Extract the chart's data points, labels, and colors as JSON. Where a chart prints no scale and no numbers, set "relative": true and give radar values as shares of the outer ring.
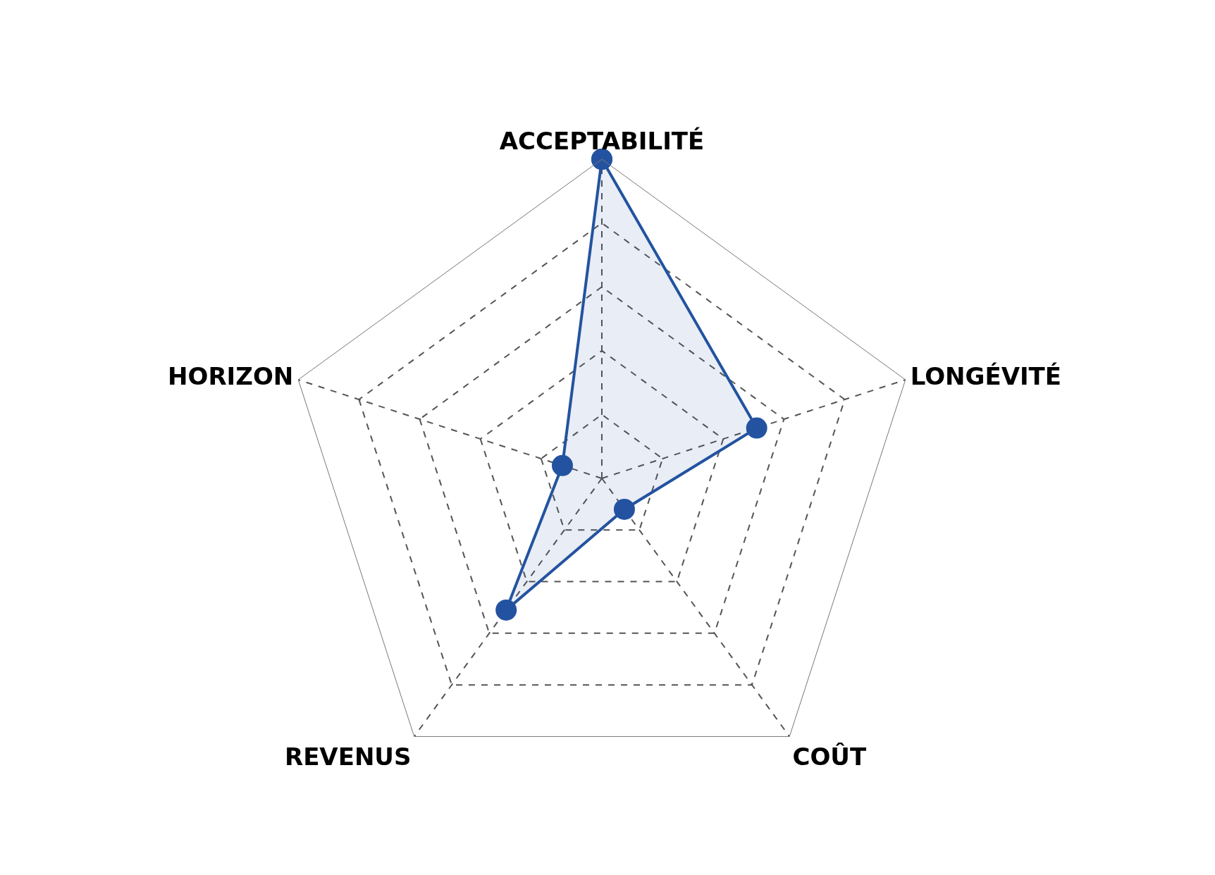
{
  "chart_data": {
    "type": "radar",
    "relative": true,
    "categories": [
      "ACCEPTABILITÉ",
      "LONGÉVITÉ",
      "COÛT",
      "REVENUS",
      "HORIZON"
    ],
    "series": [
      {
        "color": "#2353a0",
        "values": [
          1.0,
          0.51,
          0.12,
          0.51,
          0.13
        ]
      }
    ],
    "marker": "circle",
    "line_style": "solid",
    "grid": true
  }
}
